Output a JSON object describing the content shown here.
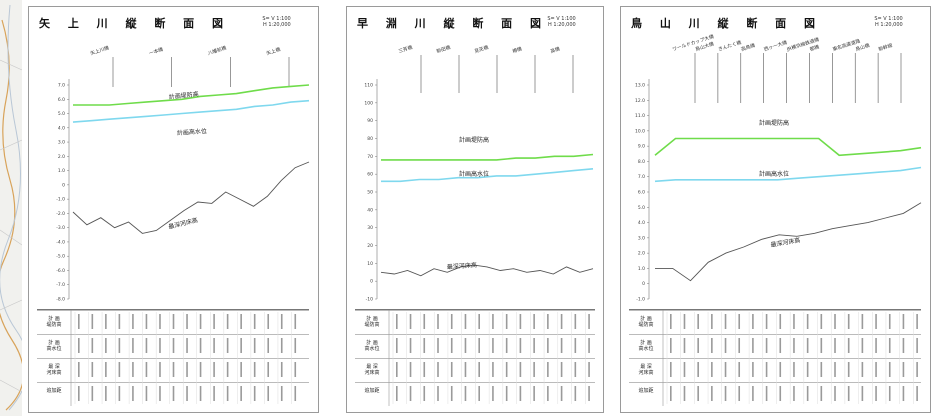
{
  "panels": [
    {
      "title": "矢 上 川 縦 断 面 図",
      "scale_v": "S= V 1:100",
      "scale_h": "H 1:20,000",
      "bridges": [
        "矢上川橋",
        "一本橋",
        "八幡前橋",
        "矢上橋"
      ],
      "y_ticks": [
        "7.0",
        "6.0",
        "5.0",
        "4.0",
        "3.0",
        "2.0",
        "1.0",
        "0",
        "-1.0",
        "-2.0",
        "-3.0",
        "-4.0",
        "-5.0",
        "-6.0",
        "-7.0",
        "-8.0"
      ],
      "annotations": {
        "dike": "計画堤防高",
        "hwl": "計画高水位",
        "bed": "最深河床高"
      },
      "table_labels": [
        "計 画\n堤防高",
        "計 画\n高水位",
        "最 深\n河床高",
        "追加距"
      ],
      "chart_data": {
        "type": "line",
        "ylim": [
          -8,
          7
        ],
        "series": [
          {
            "name": "計画堤防高",
            "color": "#6fdc4a",
            "values": [
              5.6,
              5.6,
              5.6,
              5.7,
              5.8,
              5.9,
              6.0,
              6.2,
              6.3,
              6.4,
              6.6,
              6.8,
              6.9,
              7.0
            ]
          },
          {
            "name": "計画高水位",
            "color": "#7fd8ee",
            "values": [
              4.4,
              4.5,
              4.6,
              4.7,
              4.8,
              4.9,
              5.0,
              5.1,
              5.2,
              5.3,
              5.5,
              5.6,
              5.8,
              5.9
            ]
          },
          {
            "name": "最深河床高",
            "color": "#555555",
            "values": [
              -1.9,
              -2.8,
              -2.3,
              -3.0,
              -2.6,
              -3.4,
              -3.2,
              -2.5,
              -1.8,
              -1.2,
              -1.3,
              -0.5,
              -1.0,
              -1.5,
              -0.8,
              0.3,
              1.2,
              1.6
            ]
          }
        ]
      }
    },
    {
      "title": "早 淵 川 縦 断 面 図",
      "scale_v": "S= V 1:100",
      "scale_h": "H 1:20,000",
      "bridges": [
        "三芳橋",
        "新田橋",
        "見花橋",
        "樽橋",
        "高橋"
      ],
      "y_ticks": [
        "110",
        "100",
        "90",
        "80",
        "70",
        "60",
        "50",
        "40",
        "30",
        "20",
        "10",
        "0",
        "-10"
      ],
      "annotations": {
        "dike": "計画堤防高",
        "hwl": "計画高水位",
        "bed": "最深河床高"
      },
      "table_labels": [
        "計 画\n堤防高",
        "計 画\n高水位",
        "最 深\n河床高",
        "追加距"
      ],
      "chart_data": {
        "type": "line",
        "ylim": [
          -10,
          110
        ],
        "series": [
          {
            "name": "計画堤防高",
            "color": "#6fdc4a",
            "values": [
              68,
              68,
              68,
              68,
              68,
              68,
              68,
              69,
              69,
              70,
              70,
              71
            ]
          },
          {
            "name": "計画高水位",
            "color": "#7fd8ee",
            "values": [
              56,
              56,
              57,
              57,
              58,
              58,
              59,
              59,
              60,
              61,
              62,
              63
            ]
          },
          {
            "name": "最深河床高",
            "color": "#555555",
            "values": [
              5,
              4,
              6,
              3,
              7,
              5,
              8,
              9,
              8,
              6,
              7,
              5,
              6,
              4,
              8,
              5,
              7
            ]
          }
        ]
      }
    },
    {
      "title": "鳥 山 川 縦 断 面 図",
      "scale_v": "S= V 1:100",
      "scale_h": "H 1:20,000",
      "bridges": [
        "ワールドカップ大橋",
        "鳥山大橋",
        "きんたく橋",
        "高鳥橋",
        "西ヶ一大橋",
        "JR横浜線鉄道橋",
        "都橋",
        "東名高速道路",
        "鳥山橋",
        "新幹線"
      ],
      "y_ticks": [
        "13.0",
        "12.0",
        "11.0",
        "10.0",
        "9.0",
        "8.0",
        "7.0",
        "6.0",
        "5.0",
        "4.0",
        "3.0",
        "2.0",
        "1.0",
        "0",
        "-1.0"
      ],
      "annotations": {
        "dike": "計画堤防高",
        "hwl": "計画高水位",
        "bed": "最深河床高"
      },
      "table_labels": [
        "計 画\n堤防高",
        "計 画\n高水位",
        "最 深\n河床高",
        "追加距"
      ],
      "chart_data": {
        "type": "line",
        "ylim": [
          -1,
          13
        ],
        "series": [
          {
            "name": "計画堤防高",
            "color": "#6fdc4a",
            "values": [
              8.4,
              9.5,
              9.5,
              9.5,
              9.5,
              9.5,
              9.5,
              9.5,
              9.5,
              8.4,
              8.5,
              8.6,
              8.7,
              8.9
            ]
          },
          {
            "name": "計画高水位",
            "color": "#7fd8ee",
            "values": [
              6.7,
              6.8,
              6.8,
              6.8,
              6.8,
              6.8,
              6.8,
              6.9,
              7.0,
              7.1,
              7.2,
              7.3,
              7.4,
              7.6
            ]
          },
          {
            "name": "最深河床高",
            "color": "#555555",
            "values": [
              1.0,
              1.0,
              0.2,
              1.4,
              2.0,
              2.4,
              2.9,
              3.2,
              3.1,
              3.3,
              3.6,
              3.8,
              4.0,
              4.3,
              4.6,
              5.3
            ]
          }
        ]
      }
    }
  ]
}
